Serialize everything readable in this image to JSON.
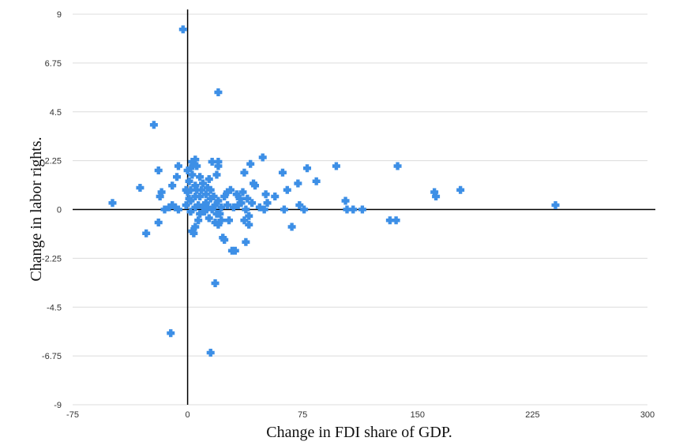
{
  "chart_data": {
    "type": "scatter",
    "title": "",
    "xlabel": "Change in FDI share of GDP.",
    "ylabel": "Change in labor rights.",
    "xlim": [
      -75,
      300
    ],
    "ylim": [
      -9,
      9
    ],
    "x_ticks": [
      "-75",
      "0",
      "75",
      "150",
      "225",
      "300"
    ],
    "y_ticks": [
      "9",
      "6.75",
      "4.5",
      "2.25",
      "0",
      "-2.25",
      "-4.5",
      "-6.75",
      "-9"
    ],
    "grid": "horizontal",
    "legend": "none",
    "marker": "plus",
    "color": "#3d8fe6",
    "series": [
      {
        "points": [
          [
            -3,
            8.3
          ],
          [
            20,
            5.4
          ],
          [
            -22,
            3.9
          ],
          [
            -49,
            0.3
          ],
          [
            -31,
            1.0
          ],
          [
            -27,
            -1.1
          ],
          [
            -19,
            1.8
          ],
          [
            -18,
            0.6
          ],
          [
            -17,
            0.8
          ],
          [
            -19,
            -0.6
          ],
          [
            -15,
            0.0
          ],
          [
            -12,
            0.1
          ],
          [
            -10,
            0.2
          ],
          [
            -10,
            1.1
          ],
          [
            -8,
            0.1
          ],
          [
            -7,
            1.5
          ],
          [
            -6,
            2.0
          ],
          [
            -6,
            0.0
          ],
          [
            -1,
            0.9
          ],
          [
            -1,
            0.2
          ],
          [
            0,
            1.8
          ],
          [
            0,
            0.8
          ],
          [
            1,
            1.3
          ],
          [
            1,
            0.5
          ],
          [
            2,
            1.9
          ],
          [
            2,
            0.9
          ],
          [
            2,
            0.4
          ],
          [
            2,
            -0.1
          ],
          [
            3,
            2.2
          ],
          [
            3,
            1.6
          ],
          [
            3,
            -1.0
          ],
          [
            4,
            -1.1
          ],
          [
            4,
            2.1
          ],
          [
            5,
            2.3
          ],
          [
            5,
            1.1
          ],
          [
            5,
            0.6
          ],
          [
            5,
            0.1
          ],
          [
            5,
            -0.8
          ],
          [
            6,
            2.0
          ],
          [
            6,
            0.9
          ],
          [
            7,
            0.2
          ],
          [
            7,
            -0.5
          ],
          [
            8,
            1.5
          ],
          [
            8,
            0.6
          ],
          [
            8,
            -0.2
          ],
          [
            9,
            0.9
          ],
          [
            10,
            0.1
          ],
          [
            10,
            1.2
          ],
          [
            11,
            -0.1
          ],
          [
            12,
            0.7
          ],
          [
            12,
            0.3
          ],
          [
            13,
            1.0
          ],
          [
            13,
            0.1
          ],
          [
            14,
            1.4
          ],
          [
            14,
            -0.4
          ],
          [
            15,
            0.5
          ],
          [
            15,
            0.9
          ],
          [
            16,
            2.2
          ],
          [
            16,
            0.0
          ],
          [
            17,
            0.6
          ],
          [
            18,
            -0.6
          ],
          [
            18,
            0.2
          ],
          [
            19,
            1.6
          ],
          [
            19,
            -0.2
          ],
          [
            20,
            2.2
          ],
          [
            20,
            2.0
          ],
          [
            20,
            0.4
          ],
          [
            20,
            -0.7
          ],
          [
            21,
            -0.2
          ],
          [
            22,
            0.1
          ],
          [
            22,
            -0.5
          ],
          [
            23,
            -1.3
          ],
          [
            24,
            -1.4
          ],
          [
            24,
            0.6
          ],
          [
            26,
            0.8
          ],
          [
            26,
            0.2
          ],
          [
            27,
            -0.5
          ],
          [
            28,
            0.9
          ],
          [
            29,
            -1.9
          ],
          [
            30,
            0.1
          ],
          [
            31,
            -1.9
          ],
          [
            32,
            0.7
          ],
          [
            33,
            0.2
          ],
          [
            34,
            0.5
          ],
          [
            35,
            0.3
          ],
          [
            36,
            0.8
          ],
          [
            37,
            1.7
          ],
          [
            37,
            -0.5
          ],
          [
            38,
            0.0
          ],
          [
            38,
            -1.5
          ],
          [
            39,
            0.5
          ],
          [
            40,
            -0.7
          ],
          [
            40,
            -0.3
          ],
          [
            41,
            2.1
          ],
          [
            42,
            0.3
          ],
          [
            43,
            1.2
          ],
          [
            44,
            1.1
          ],
          [
            47,
            0.1
          ],
          [
            49,
            2.4
          ],
          [
            50,
            0.0
          ],
          [
            51,
            0.7
          ],
          [
            52,
            0.3
          ],
          [
            57,
            0.6
          ],
          [
            62,
            1.7
          ],
          [
            63,
            0.0
          ],
          [
            65,
            0.9
          ],
          [
            68,
            -0.8
          ],
          [
            72,
            1.2
          ],
          [
            73,
            0.2
          ],
          [
            76,
            0.0
          ],
          [
            78,
            1.9
          ],
          [
            84,
            1.3
          ],
          [
            97,
            2.0
          ],
          [
            103,
            0.4
          ],
          [
            104,
            0.0
          ],
          [
            108,
            0.0
          ],
          [
            114,
            0.0
          ],
          [
            132,
            -0.5
          ],
          [
            136,
            -0.5
          ],
          [
            137,
            2.0
          ],
          [
            161,
            0.8
          ],
          [
            162,
            0.6
          ],
          [
            178,
            0.9
          ],
          [
            240,
            0.2
          ],
          [
            -11,
            -5.7
          ],
          [
            15,
            -6.6
          ],
          [
            18,
            -3.4
          ]
        ]
      }
    ]
  }
}
